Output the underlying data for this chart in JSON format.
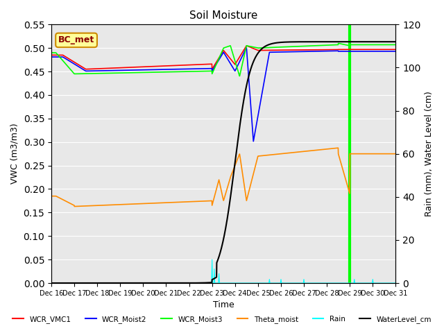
{
  "title": "Soil Moisture",
  "xlabel": "Time",
  "ylabel_left": "VWC (m3/m3)",
  "ylabel_right": "Rain (mm), Water Level (cm)",
  "ylim_left": [
    0,
    0.55
  ],
  "ylim_right": [
    0,
    120
  ],
  "yticks_left": [
    0.0,
    0.05,
    0.1,
    0.15,
    0.2,
    0.25,
    0.3,
    0.35,
    0.4,
    0.45,
    0.5,
    0.55
  ],
  "yticks_right": [
    0,
    20,
    40,
    60,
    80,
    100,
    120
  ],
  "background_color": "#e8e8e8",
  "annotation_box": "BC_met",
  "legend_labels": [
    "WCR_VMC1",
    "WCR_Moist2",
    "WCR_Moist3",
    "Theta_moist",
    "Rain",
    "WaterLevel_cm"
  ],
  "legend_colors": [
    "red",
    "blue",
    "lime",
    "#ff8c00",
    "cyan",
    "black"
  ],
  "green_bar_day": 13,
  "xtick_labels": [
    "Dec 16",
    "Dec 17",
    "Dec 18",
    "Dec 19",
    "Dec 20",
    "Dec 21",
    "Dec 22",
    "Dec 23",
    "Dec 24",
    "Dec 25",
    "Dec 26",
    "Dec 27",
    "Dec 28",
    "Dec 29",
    "Dec 30",
    "Dec 31"
  ]
}
